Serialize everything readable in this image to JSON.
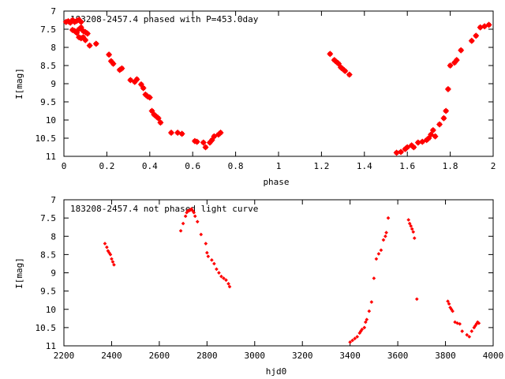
{
  "colors": {
    "points": "#ff0000",
    "frame": "#000000",
    "background": "#ffffff"
  },
  "chart_data": [
    {
      "type": "scatter",
      "title": "183208-2457.4 phased with P=453.0day",
      "xlabel": "phase",
      "ylabel": "I[mag]",
      "xlim": [
        0,
        2
      ],
      "ylim": [
        7,
        11
      ],
      "y_inverted": true,
      "x_ticks": [
        "0",
        "0.2",
        "0.4",
        "0.6",
        "0.8",
        "1",
        "1.2",
        "1.4",
        "1.6",
        "1.8",
        "2"
      ],
      "y_ticks": [
        "7",
        "7.5",
        "8",
        "8.5",
        "9",
        "9.5",
        "10",
        "10.5",
        "11"
      ],
      "grid": false,
      "legend": "none",
      "marker_size": "large",
      "series": [
        {
          "x": [
            0.01,
            0.02,
            0.03,
            0.04,
            0.05,
            0.06,
            0.07,
            0.08,
            0.04,
            0.05,
            0.06,
            0.07,
            0.08,
            0.09,
            0.1,
            0.11,
            0.07,
            0.08,
            0.09,
            0.1,
            0.12,
            0.15,
            0.21,
            0.22,
            0.23,
            0.26,
            0.27,
            0.31,
            0.33,
            0.34,
            0.36,
            0.37,
            0.38,
            0.39,
            0.4,
            0.41,
            0.42,
            0.43,
            0.44,
            0.45,
            0.5,
            0.53,
            0.55,
            0.61,
            0.62,
            0.65,
            0.66,
            0.68,
            0.69,
            0.7,
            0.72,
            0.73,
            1.24,
            1.26,
            1.27,
            1.28,
            1.29,
            1.3,
            1.31,
            1.33,
            1.55,
            1.57,
            1.59,
            1.6,
            1.62,
            1.63,
            1.65,
            1.67,
            1.69,
            1.7,
            1.71,
            1.72,
            1.73,
            1.75,
            1.77,
            1.78,
            1.79,
            1.8,
            1.82,
            1.83,
            1.85,
            1.9,
            1.92,
            1.94,
            1.96,
            1.98
          ],
          "y": [
            7.3,
            7.28,
            7.32,
            7.25,
            7.3,
            7.27,
            7.24,
            7.3,
            7.52,
            7.55,
            7.6,
            7.5,
            7.45,
            7.55,
            7.58,
            7.62,
            7.72,
            7.75,
            7.72,
            7.8,
            7.95,
            7.9,
            8.2,
            8.38,
            8.45,
            8.62,
            8.58,
            8.9,
            8.95,
            8.88,
            9.02,
            9.12,
            9.3,
            9.35,
            9.38,
            9.75,
            9.85,
            9.9,
            9.95,
            10.07,
            10.35,
            10.35,
            10.38,
            10.58,
            10.6,
            10.62,
            10.75,
            10.62,
            10.55,
            10.45,
            10.4,
            10.35,
            8.18,
            8.35,
            8.4,
            8.45,
            8.55,
            8.6,
            8.65,
            8.75,
            10.9,
            10.88,
            10.8,
            10.75,
            10.7,
            10.75,
            10.62,
            10.6,
            10.55,
            10.5,
            10.4,
            10.28,
            10.45,
            10.12,
            9.95,
            9.75,
            9.15,
            8.5,
            8.42,
            8.35,
            8.08,
            7.82,
            7.68,
            7.45,
            7.42,
            7.38
          ]
        }
      ]
    },
    {
      "type": "scatter",
      "title": "183208-2457.4 not phased light curve",
      "xlabel": "hjd0",
      "ylabel": "I[mag]",
      "xlim": [
        2200,
        4000
      ],
      "ylim": [
        7,
        11
      ],
      "y_inverted": true,
      "x_ticks": [
        "2200",
        "2400",
        "2600",
        "2800",
        "3000",
        "3200",
        "3400",
        "3600",
        "3800",
        "4000"
      ],
      "y_ticks": [
        "7",
        "7.5",
        "8",
        "8.5",
        "9",
        "9.5",
        "10",
        "10.5",
        "11"
      ],
      "grid": false,
      "legend": "none",
      "marker_size": "small",
      "series": [
        {
          "x": [
            2372,
            2380,
            2385,
            2390,
            2395,
            2400,
            2405,
            2410,
            2690,
            2700,
            2710,
            2715,
            2720,
            2725,
            2730,
            2735,
            2740,
            2745,
            2750,
            2760,
            2775,
            2795,
            2800,
            2805,
            2820,
            2830,
            2840,
            2850,
            2860,
            2870,
            2880,
            2890,
            2895,
            3400,
            3410,
            3420,
            3430,
            3440,
            3445,
            3450,
            3460,
            3465,
            3470,
            3480,
            3490,
            3500,
            3510,
            3520,
            3530,
            3540,
            3548,
            3552,
            3560,
            3645,
            3650,
            3655,
            3660,
            3665,
            3670,
            3680,
            3810,
            3815,
            3820,
            3825,
            3830,
            3840,
            3850,
            3860,
            3870,
            3890,
            3900,
            3910,
            3920,
            3925,
            3930,
            3935,
            3940
          ],
          "y": [
            8.2,
            8.3,
            8.4,
            8.45,
            8.5,
            8.62,
            8.7,
            8.78,
            7.85,
            7.65,
            7.45,
            7.35,
            7.3,
            7.3,
            7.28,
            7.25,
            7.3,
            7.35,
            7.45,
            7.6,
            7.95,
            8.2,
            8.45,
            8.55,
            8.65,
            8.75,
            8.9,
            9.0,
            9.1,
            9.15,
            9.2,
            9.3,
            9.38,
            10.9,
            10.85,
            10.8,
            10.75,
            10.65,
            10.6,
            10.55,
            10.5,
            10.35,
            10.28,
            10.05,
            9.8,
            9.15,
            8.62,
            8.48,
            8.38,
            8.1,
            8.0,
            7.9,
            7.5,
            7.55,
            7.65,
            7.72,
            7.8,
            7.88,
            8.05,
            9.72,
            9.78,
            9.85,
            9.95,
            10.0,
            10.05,
            10.35,
            10.38,
            10.4,
            10.6,
            10.7,
            10.75,
            10.6,
            10.5,
            10.45,
            10.4,
            10.35,
            10.38
          ]
        }
      ]
    }
  ]
}
